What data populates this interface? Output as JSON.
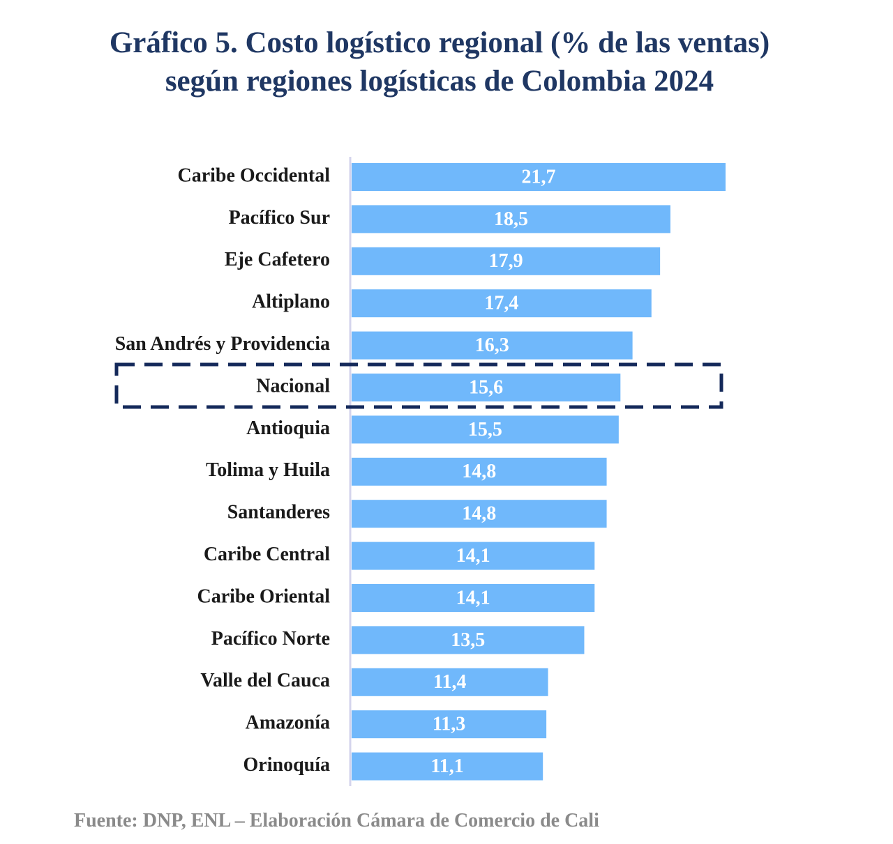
{
  "chart_data": {
    "type": "bar",
    "orientation": "horizontal",
    "title": "Gráfico 5. Costo logístico regional (% de las ventas) según regiones logísticas de Colombia 2024",
    "categories": [
      "Caribe Occidental",
      "Pacífico Sur",
      "Eje Cafetero",
      "Altiplano",
      "San Andrés y Providencia",
      "Nacional",
      "Antioquia",
      "Tolima y Huila",
      "Santanderes",
      "Caribe Central",
      "Caribe Oriental",
      "Pacífico Norte",
      "Valle del Cauca",
      "Amazonía",
      "Orinoquía"
    ],
    "values": [
      21.7,
      18.5,
      17.9,
      17.4,
      16.3,
      15.6,
      15.5,
      14.8,
      14.8,
      14.1,
      14.1,
      13.5,
      11.4,
      11.3,
      11.1
    ],
    "value_labels": [
      "21,7",
      "18,5",
      "17,9",
      "17,4",
      "16,3",
      "15,6",
      "15,5",
      "14,8",
      "14,8",
      "14,1",
      "14,1",
      "13,5",
      "11,4",
      "11,3",
      "11,1"
    ],
    "color": "#70b8fb",
    "source": "Fuente: DNP, ENL – Elaboración Cámara de Comercio de Cali"
  }
}
